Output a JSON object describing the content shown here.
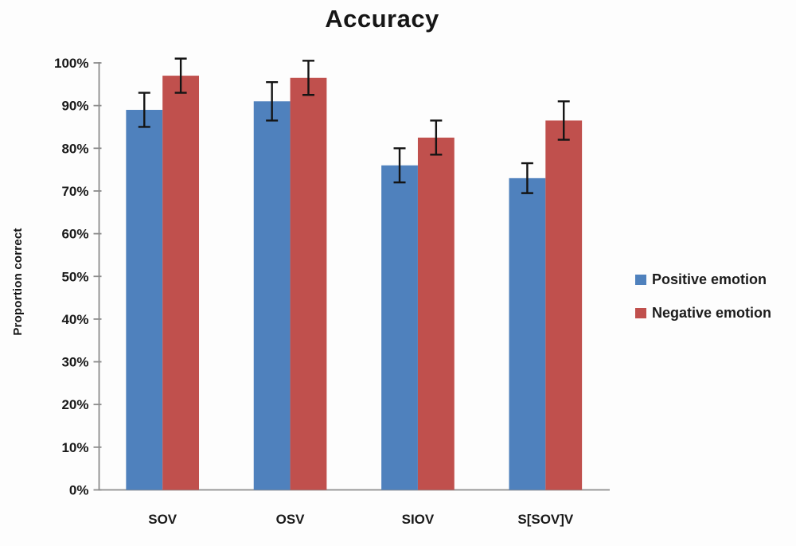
{
  "chart_data": {
    "type": "bar",
    "title": "Accuracy",
    "xlabel": "",
    "ylabel": "Proportion correct",
    "categories": [
      "SOV",
      "OSV",
      "SIOV",
      "S[SOV]V"
    ],
    "series": [
      {
        "name": "Positive emotion",
        "color": "#4F81BD",
        "values": [
          89,
          91,
          76,
          73
        ],
        "errors": [
          4,
          4.5,
          4,
          3.5
        ]
      },
      {
        "name": "Negative emotion",
        "color": "#C0504D",
        "values": [
          97,
          96.5,
          82.5,
          86.5
        ],
        "errors": [
          4,
          4,
          4,
          4.5
        ]
      }
    ],
    "ylim": [
      0,
      100
    ],
    "ytick_step": 10,
    "ytick_labels": [
      "0%",
      "10%",
      "20%",
      "30%",
      "40%",
      "50%",
      "60%",
      "70%",
      "80%",
      "90%",
      "100%"
    ],
    "grid": false,
    "legend_position": "right",
    "error_bars": true,
    "colors": {
      "axis": "#8c8c8c",
      "error_bar": "#141414",
      "text": "#1a1a1a"
    }
  }
}
